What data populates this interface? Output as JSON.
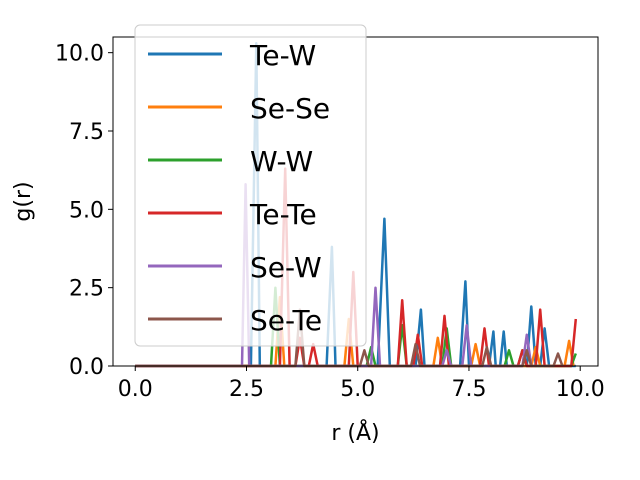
{
  "chart_data": {
    "type": "line",
    "xlabel": "r (Å)",
    "ylabel": "g(r)",
    "xlim": [
      -0.5,
      10.4
    ],
    "ylim": [
      0,
      10.5
    ],
    "xticks": [
      0.0,
      2.5,
      5.0,
      7.5,
      10.0
    ],
    "xtick_labels": [
      "0.0",
      "2.5",
      "5.0",
      "7.5",
      "10.0"
    ],
    "yticks": [
      0.0,
      2.5,
      5.0,
      7.5,
      10.0
    ],
    "ytick_labels": [
      "0.0",
      "2.5",
      "5.0",
      "7.5",
      "10.0"
    ],
    "grid": false,
    "legend_position": "upper-left",
    "series": [
      {
        "name": "Te-W",
        "color": "#1f77b4",
        "points": [
          [
            0.0,
            0
          ],
          [
            2.6,
            0
          ],
          [
            2.72,
            10.3
          ],
          [
            2.8,
            0
          ],
          [
            4.3,
            0
          ],
          [
            4.42,
            3.8
          ],
          [
            4.5,
            0
          ],
          [
            5.45,
            0
          ],
          [
            5.6,
            4.7
          ],
          [
            5.72,
            0
          ],
          [
            6.3,
            0
          ],
          [
            6.42,
            1.8
          ],
          [
            6.5,
            0
          ],
          [
            7.3,
            0
          ],
          [
            7.42,
            2.7
          ],
          [
            7.5,
            0
          ],
          [
            7.95,
            0
          ],
          [
            8.05,
            1.1
          ],
          [
            8.1,
            0
          ],
          [
            8.2,
            0
          ],
          [
            8.28,
            1.1
          ],
          [
            8.35,
            0
          ],
          [
            8.8,
            0
          ],
          [
            8.9,
            1.9
          ],
          [
            9.0,
            0
          ],
          [
            9.1,
            0
          ],
          [
            9.2,
            1.2
          ],
          [
            9.3,
            0
          ],
          [
            9.9,
            0
          ]
        ]
      },
      {
        "name": "Se-Se",
        "color": "#ff7f0e",
        "points": [
          [
            0.0,
            0
          ],
          [
            3.15,
            0
          ],
          [
            3.25,
            2.2
          ],
          [
            3.35,
            0
          ],
          [
            4.7,
            0
          ],
          [
            4.8,
            1.5
          ],
          [
            4.9,
            0
          ],
          [
            6.7,
            0
          ],
          [
            6.8,
            0.9
          ],
          [
            6.9,
            0
          ],
          [
            7.55,
            0
          ],
          [
            7.65,
            0.7
          ],
          [
            7.75,
            0
          ],
          [
            8.9,
            0
          ],
          [
            9.0,
            0.6
          ],
          [
            9.1,
            0
          ],
          [
            9.65,
            0
          ],
          [
            9.75,
            0.8
          ],
          [
            9.85,
            0
          ]
        ]
      },
      {
        "name": "W-W",
        "color": "#2ca02c",
        "points": [
          [
            0.0,
            0
          ],
          [
            3.05,
            0
          ],
          [
            3.15,
            2.5
          ],
          [
            3.25,
            0
          ],
          [
            5.2,
            0
          ],
          [
            5.3,
            0.6
          ],
          [
            5.4,
            0
          ],
          [
            5.9,
            0
          ],
          [
            6.0,
            1.3
          ],
          [
            6.1,
            0
          ],
          [
            6.9,
            0
          ],
          [
            7.0,
            1.2
          ],
          [
            7.1,
            0
          ],
          [
            8.3,
            0
          ],
          [
            8.4,
            0.5
          ],
          [
            8.5,
            0
          ],
          [
            8.6,
            0
          ],
          [
            8.7,
            0.5
          ],
          [
            8.8,
            0
          ],
          [
            9.8,
            0
          ],
          [
            9.9,
            0.4
          ]
        ]
      },
      {
        "name": "Te-Te",
        "color": "#d62728",
        "points": [
          [
            0.0,
            0
          ],
          [
            3.25,
            0
          ],
          [
            3.37,
            6.3
          ],
          [
            3.47,
            0
          ],
          [
            3.6,
            0
          ],
          [
            3.7,
            0.9
          ],
          [
            3.8,
            0
          ],
          [
            3.9,
            0
          ],
          [
            4.0,
            0.7
          ],
          [
            4.1,
            0
          ],
          [
            4.8,
            0
          ],
          [
            4.9,
            3.0
          ],
          [
            5.0,
            0
          ],
          [
            5.9,
            0
          ],
          [
            6.0,
            2.1
          ],
          [
            6.1,
            0
          ],
          [
            6.25,
            0
          ],
          [
            6.35,
            1.0
          ],
          [
            6.45,
            0
          ],
          [
            6.85,
            0
          ],
          [
            6.95,
            1.6
          ],
          [
            7.05,
            0
          ],
          [
            7.75,
            0
          ],
          [
            7.85,
            1.2
          ],
          [
            7.95,
            0
          ],
          [
            8.6,
            0
          ],
          [
            8.7,
            0.5
          ],
          [
            8.8,
            0
          ],
          [
            9.0,
            0
          ],
          [
            9.1,
            1.8
          ],
          [
            9.2,
            0
          ],
          [
            9.8,
            0
          ],
          [
            9.9,
            1.5
          ]
        ]
      },
      {
        "name": "Se-W",
        "color": "#9467bd",
        "points": [
          [
            0.0,
            0
          ],
          [
            2.4,
            0
          ],
          [
            2.48,
            5.8
          ],
          [
            2.56,
            0
          ],
          [
            5.3,
            0
          ],
          [
            5.4,
            2.5
          ],
          [
            5.5,
            0
          ],
          [
            6.9,
            0
          ],
          [
            7.0,
            0.5
          ],
          [
            7.1,
            0
          ],
          [
            7.35,
            0
          ],
          [
            7.45,
            1.3
          ],
          [
            7.55,
            0
          ],
          [
            8.7,
            0
          ],
          [
            8.8,
            1.0
          ],
          [
            8.9,
            0
          ]
        ]
      },
      {
        "name": "Se-Te",
        "color": "#8c564b",
        "points": [
          [
            0.0,
            0
          ],
          [
            3.6,
            0
          ],
          [
            3.7,
            1.8
          ],
          [
            3.8,
            0
          ],
          [
            5.05,
            0
          ],
          [
            5.15,
            0.5
          ],
          [
            5.25,
            0
          ],
          [
            6.2,
            0
          ],
          [
            6.3,
            0.7
          ],
          [
            6.4,
            0
          ],
          [
            7.8,
            0
          ],
          [
            7.9,
            0.6
          ],
          [
            8.0,
            0
          ],
          [
            8.7,
            0
          ],
          [
            8.8,
            0.5
          ],
          [
            8.9,
            0
          ],
          [
            9.4,
            0
          ],
          [
            9.5,
            0.4
          ],
          [
            9.6,
            0
          ]
        ]
      }
    ]
  }
}
